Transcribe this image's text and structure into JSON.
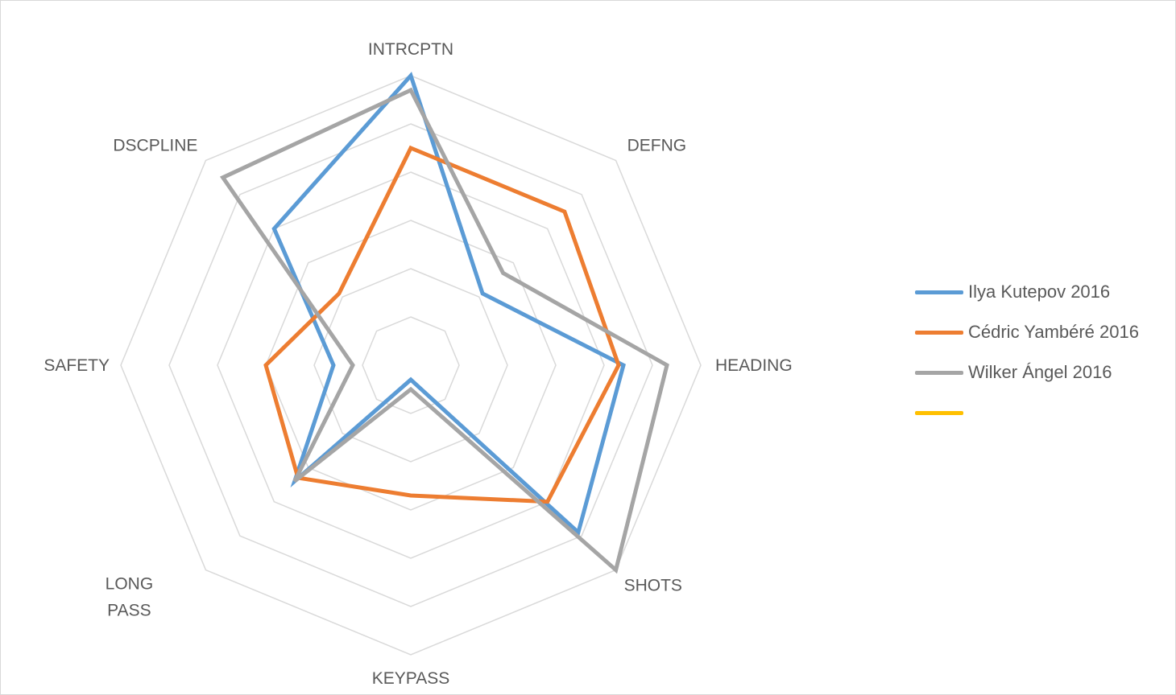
{
  "chart_data": {
    "type": "radar",
    "title": "",
    "axes": [
      "INTRCPTN",
      "DEFNG",
      "HEADING",
      "SHOTS",
      "KEYPASS",
      "LONG PASS",
      "SAFETY",
      "DSCPLINE"
    ],
    "rmax": 6,
    "rings": 6,
    "grid": true,
    "legend_position": "right",
    "series": [
      {
        "name": "Ilya Kutepov 2016",
        "color": "#5b9bd5",
        "values": [
          6.0,
          2.1,
          4.4,
          4.9,
          0.3,
          3.4,
          1.6,
          4.0
        ]
      },
      {
        "name": "Cédric Yambéré 2016",
        "color": "#ed7d31",
        "values": [
          4.5,
          4.5,
          4.3,
          4.0,
          2.7,
          3.3,
          3.0,
          2.1
        ]
      },
      {
        "name": "Wilker Ángel 2016",
        "color": "#a5a5a5",
        "values": [
          5.7,
          2.7,
          5.3,
          6.0,
          0.5,
          3.4,
          1.2,
          5.5
        ]
      },
      {
        "name": "",
        "color": "#ffc000",
        "values": []
      }
    ]
  }
}
